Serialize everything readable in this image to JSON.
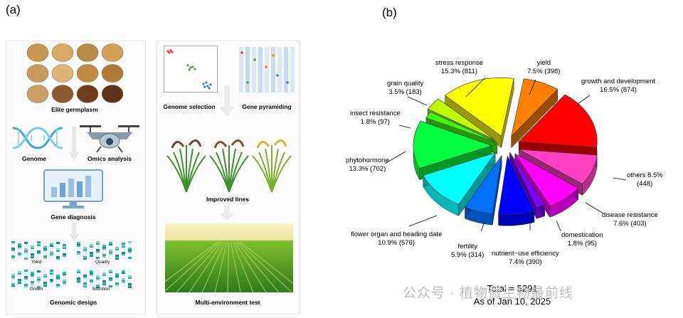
{
  "panel_a": {
    "label": "(a)",
    "captions": {
      "elite_germplasm": "Elite germplasm",
      "genome": "Genome",
      "omics_analysis": "Omics analysis",
      "gene_diagnosis": "Gene diagnosis",
      "genomic_design": "Genomic design",
      "genome_selection": "Genome selection",
      "gene_pyramiding": "Gene pyramiding",
      "improved_lines": "Improved lines",
      "multi_environment_test": "Multi-environment test"
    },
    "trait_labels": {
      "yield": "Yield",
      "quality": "Quality",
      "green": "Green",
      "nutrition": "Nutrition"
    }
  },
  "panel_b": {
    "label": "(b)",
    "total_line": "Total = 5291",
    "date_line": "As of Jan 10, 2025"
  },
  "chart_data": {
    "type": "pie",
    "title": "",
    "total": 5291,
    "slices": [
      {
        "name": "yield",
        "percent": 7.5,
        "count": 398,
        "color": "#ff8000"
      },
      {
        "name": "growth and development",
        "percent": 16.5,
        "count": 874,
        "color": "#ff0000"
      },
      {
        "name": "others",
        "percent": 8.5,
        "count": 448,
        "color": "#ff40c0"
      },
      {
        "name": "disease resistance",
        "percent": 7.6,
        "count": 403,
        "color": "#ff00ff"
      },
      {
        "name": "domestication",
        "percent": 1.8,
        "count": 95,
        "color": "#8000ff"
      },
      {
        "name": "nutrient−use efficiency",
        "percent": 7.4,
        "count": 390,
        "color": "#0000ff"
      },
      {
        "name": "fertility",
        "percent": 5.9,
        "count": 314,
        "color": "#0070ff"
      },
      {
        "name": "flower organ and heading date",
        "percent": 10.9,
        "count": 576,
        "color": "#00ffff"
      },
      {
        "name": "phytohormone",
        "percent": 13.3,
        "count": 702,
        "color": "#00ff40"
      },
      {
        "name": "insect resistance",
        "percent": 1.8,
        "count": 97,
        "color": "#40ff00"
      },
      {
        "name": "grain quality",
        "percent": 3.5,
        "count": 183,
        "color": "#c0ff00"
      },
      {
        "name": "stress response",
        "percent": 15.3,
        "count": 811,
        "color": "#ffff00"
      }
    ],
    "labels": {
      "yield": [
        "yield",
        "7.5% (398)"
      ],
      "growth": [
        "growth and development",
        "16.5% (874)"
      ],
      "others": [
        "others 8.5%",
        "(448)"
      ],
      "disease": [
        "disease resistance",
        "7.6% (403)"
      ],
      "domestication": [
        "domestication",
        "1.8% (95)"
      ],
      "nutrient": [
        "nutrient−use efficiency",
        "7.4% (390)"
      ],
      "fertility": [
        "fertility",
        "5.9% (314)"
      ],
      "flower": [
        "flower organ and heading date",
        "10.9% (576)"
      ],
      "phytohormone": [
        "phytohormone",
        "13.3% (702)"
      ],
      "insect": [
        "insect resistance",
        "1.8% (97)"
      ],
      "grain": [
        "grain quality",
        "3.5% (183)"
      ],
      "stress": [
        "stress response",
        "15.3% (811)"
      ]
    }
  },
  "watermark": "公众号 · 植物微生物最前线"
}
